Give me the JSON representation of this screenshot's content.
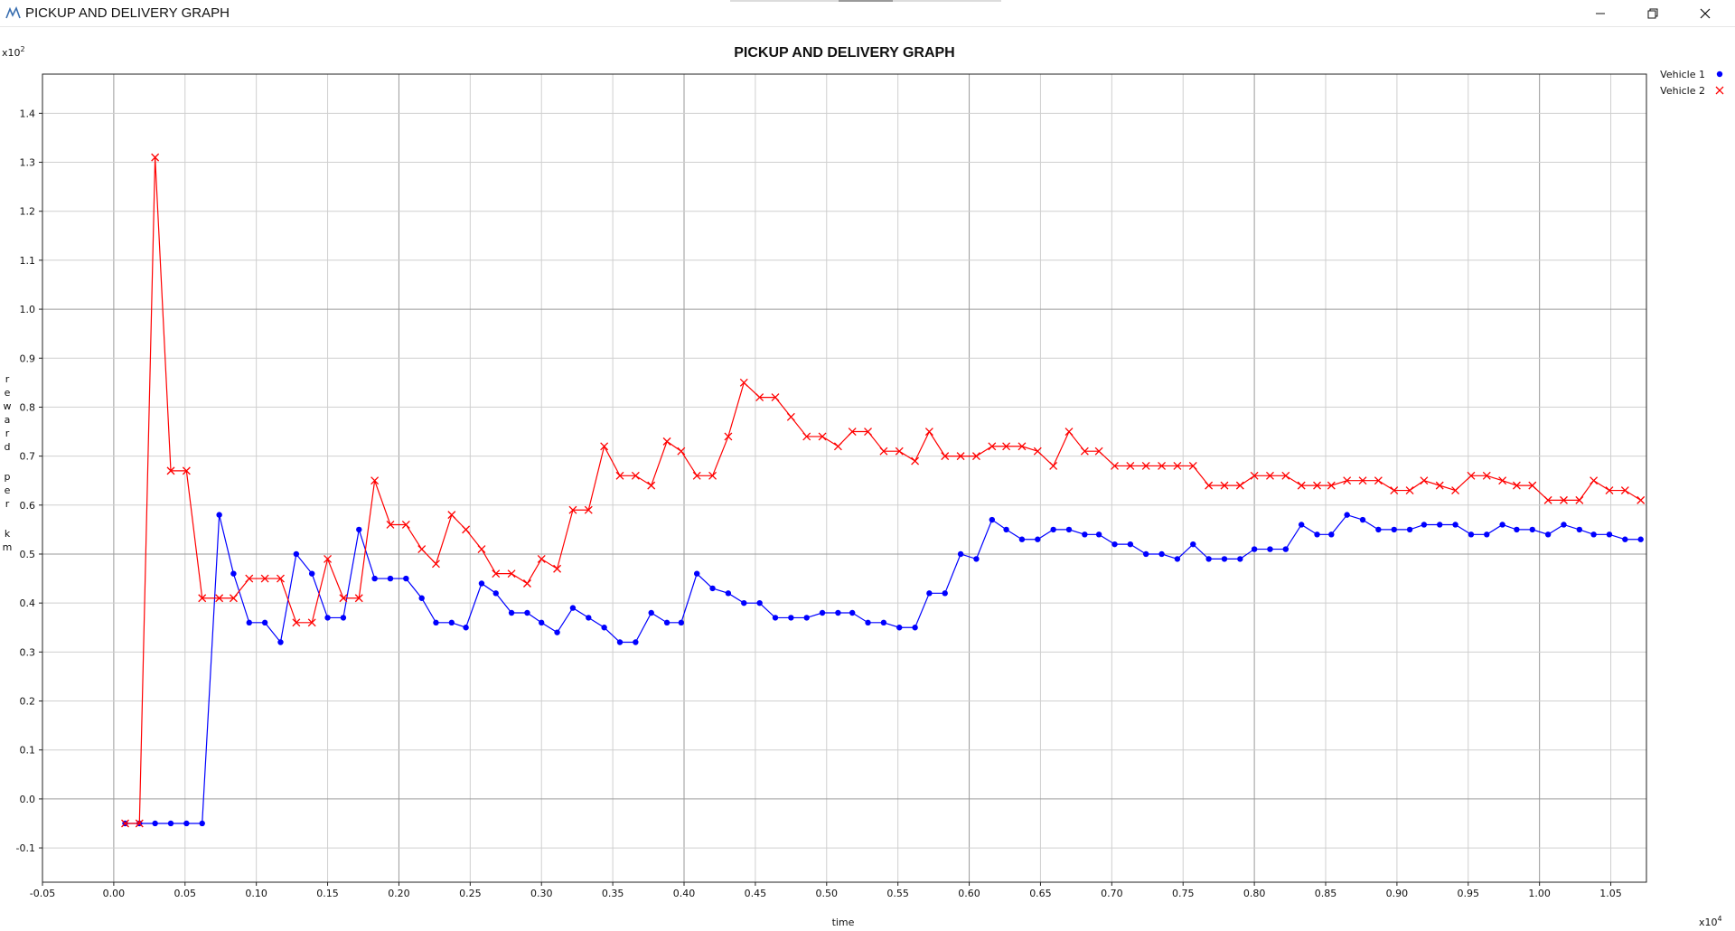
{
  "window": {
    "title": "PICKUP AND DELIVERY GRAPH",
    "icons": [
      "app-chart-icon",
      "minimize-icon",
      "restore-icon",
      "close-icon"
    ]
  },
  "chart_data": {
    "type": "line",
    "title": "PICKUP AND DELIVERY GRAPH",
    "xlabel": "time",
    "ylabel": "reward per km",
    "x_exponent": "x10^4",
    "y_exponent": "x10^2",
    "x_exponent_base": "x10",
    "x_exponent_power": "4",
    "y_exponent_base": "x10",
    "y_exponent_power": "2",
    "xlim": [
      -0.05,
      1.075
    ],
    "ylim": [
      -0.17,
      1.48
    ],
    "xticks": [
      "-0.05",
      "0.00",
      "0.05",
      "0.10",
      "0.15",
      "0.20",
      "0.25",
      "0.30",
      "0.35",
      "0.40",
      "0.45",
      "0.50",
      "0.55",
      "0.60",
      "0.65",
      "0.70",
      "0.75",
      "0.80",
      "0.85",
      "0.90",
      "0.95",
      "1.00",
      "1.05"
    ],
    "yticks": [
      "-0.1",
      "0.0",
      "0.1",
      "0.2",
      "0.3",
      "0.4",
      "0.5",
      "0.6",
      "0.7",
      "0.8",
      "0.9",
      "1.0",
      "1.1",
      "1.2",
      "1.3",
      "1.4"
    ],
    "grid": true,
    "legend_position": "top-right",
    "series": [
      {
        "name": "Vehicle 1",
        "color": "#0000ff",
        "marker": "dot",
        "points": [
          [
            0.008,
            -0.05
          ],
          [
            0.018,
            -0.05
          ],
          [
            0.029,
            -0.05
          ],
          [
            0.04,
            -0.05
          ],
          [
            0.051,
            -0.05
          ],
          [
            0.062,
            -0.05
          ],
          [
            0.074,
            0.58
          ],
          [
            0.084,
            0.46
          ],
          [
            0.095,
            0.36
          ],
          [
            0.106,
            0.36
          ],
          [
            0.117,
            0.32
          ],
          [
            0.128,
            0.5
          ],
          [
            0.139,
            0.46
          ],
          [
            0.15,
            0.37
          ],
          [
            0.161,
            0.37
          ],
          [
            0.172,
            0.55
          ],
          [
            0.183,
            0.45
          ],
          [
            0.194,
            0.45
          ],
          [
            0.205,
            0.45
          ],
          [
            0.216,
            0.41
          ],
          [
            0.226,
            0.36
          ],
          [
            0.237,
            0.36
          ],
          [
            0.247,
            0.35
          ],
          [
            0.258,
            0.44
          ],
          [
            0.268,
            0.42
          ],
          [
            0.279,
            0.38
          ],
          [
            0.29,
            0.38
          ],
          [
            0.3,
            0.36
          ],
          [
            0.311,
            0.34
          ],
          [
            0.322,
            0.39
          ],
          [
            0.333,
            0.37
          ],
          [
            0.344,
            0.35
          ],
          [
            0.355,
            0.32
          ],
          [
            0.366,
            0.32
          ],
          [
            0.377,
            0.38
          ],
          [
            0.388,
            0.36
          ],
          [
            0.398,
            0.36
          ],
          [
            0.409,
            0.46
          ],
          [
            0.42,
            0.43
          ],
          [
            0.431,
            0.42
          ],
          [
            0.442,
            0.4
          ],
          [
            0.453,
            0.4
          ],
          [
            0.464,
            0.37
          ],
          [
            0.475,
            0.37
          ],
          [
            0.486,
            0.37
          ],
          [
            0.497,
            0.38
          ],
          [
            0.508,
            0.38
          ],
          [
            0.518,
            0.38
          ],
          [
            0.529,
            0.36
          ],
          [
            0.54,
            0.36
          ],
          [
            0.551,
            0.35
          ],
          [
            0.562,
            0.35
          ],
          [
            0.572,
            0.42
          ],
          [
            0.583,
            0.42
          ],
          [
            0.594,
            0.5
          ],
          [
            0.605,
            0.49
          ],
          [
            0.616,
            0.57
          ],
          [
            0.626,
            0.55
          ],
          [
            0.637,
            0.53
          ],
          [
            0.648,
            0.53
          ],
          [
            0.659,
            0.55
          ],
          [
            0.67,
            0.55
          ],
          [
            0.681,
            0.54
          ],
          [
            0.691,
            0.54
          ],
          [
            0.702,
            0.52
          ],
          [
            0.713,
            0.52
          ],
          [
            0.724,
            0.5
          ],
          [
            0.735,
            0.5
          ],
          [
            0.746,
            0.49
          ],
          [
            0.757,
            0.52
          ],
          [
            0.768,
            0.49
          ],
          [
            0.779,
            0.49
          ],
          [
            0.79,
            0.49
          ],
          [
            0.8,
            0.51
          ],
          [
            0.811,
            0.51
          ],
          [
            0.822,
            0.51
          ],
          [
            0.833,
            0.56
          ],
          [
            0.844,
            0.54
          ],
          [
            0.854,
            0.54
          ],
          [
            0.865,
            0.58
          ],
          [
            0.876,
            0.57
          ],
          [
            0.887,
            0.55
          ],
          [
            0.898,
            0.55
          ],
          [
            0.909,
            0.55
          ],
          [
            0.919,
            0.56
          ],
          [
            0.93,
            0.56
          ],
          [
            0.941,
            0.56
          ],
          [
            0.952,
            0.54
          ],
          [
            0.963,
            0.54
          ],
          [
            0.974,
            0.56
          ],
          [
            0.984,
            0.55
          ],
          [
            0.995,
            0.55
          ],
          [
            1.006,
            0.54
          ],
          [
            1.017,
            0.56
          ],
          [
            1.028,
            0.55
          ],
          [
            1.038,
            0.54
          ],
          [
            1.049,
            0.54
          ],
          [
            1.06,
            0.53
          ],
          [
            1.071,
            0.53
          ]
        ]
      },
      {
        "name": "Vehicle 2",
        "color": "#ff0000",
        "marker": "x",
        "points": [
          [
            0.008,
            -0.05
          ],
          [
            0.018,
            -0.05
          ],
          [
            0.029,
            1.31
          ],
          [
            0.04,
            0.67
          ],
          [
            0.051,
            0.67
          ],
          [
            0.062,
            0.41
          ],
          [
            0.074,
            0.41
          ],
          [
            0.084,
            0.41
          ],
          [
            0.095,
            0.45
          ],
          [
            0.106,
            0.45
          ],
          [
            0.117,
            0.45
          ],
          [
            0.128,
            0.36
          ],
          [
            0.139,
            0.36
          ],
          [
            0.15,
            0.49
          ],
          [
            0.161,
            0.41
          ],
          [
            0.172,
            0.41
          ],
          [
            0.183,
            0.65
          ],
          [
            0.194,
            0.56
          ],
          [
            0.205,
            0.56
          ],
          [
            0.216,
            0.51
          ],
          [
            0.226,
            0.48
          ],
          [
            0.237,
            0.58
          ],
          [
            0.247,
            0.55
          ],
          [
            0.258,
            0.51
          ],
          [
            0.268,
            0.46
          ],
          [
            0.279,
            0.46
          ],
          [
            0.29,
            0.44
          ],
          [
            0.3,
            0.49
          ],
          [
            0.311,
            0.47
          ],
          [
            0.322,
            0.59
          ],
          [
            0.333,
            0.59
          ],
          [
            0.344,
            0.72
          ],
          [
            0.355,
            0.66
          ],
          [
            0.366,
            0.66
          ],
          [
            0.377,
            0.64
          ],
          [
            0.388,
            0.73
          ],
          [
            0.398,
            0.71
          ],
          [
            0.409,
            0.66
          ],
          [
            0.42,
            0.66
          ],
          [
            0.431,
            0.74
          ],
          [
            0.442,
            0.85
          ],
          [
            0.453,
            0.82
          ],
          [
            0.464,
            0.82
          ],
          [
            0.475,
            0.78
          ],
          [
            0.486,
            0.74
          ],
          [
            0.497,
            0.74
          ],
          [
            0.508,
            0.72
          ],
          [
            0.518,
            0.75
          ],
          [
            0.529,
            0.75
          ],
          [
            0.54,
            0.71
          ],
          [
            0.551,
            0.71
          ],
          [
            0.562,
            0.69
          ],
          [
            0.572,
            0.75
          ],
          [
            0.583,
            0.7
          ],
          [
            0.594,
            0.7
          ],
          [
            0.605,
            0.7
          ],
          [
            0.616,
            0.72
          ],
          [
            0.626,
            0.72
          ],
          [
            0.637,
            0.72
          ],
          [
            0.648,
            0.71
          ],
          [
            0.659,
            0.68
          ],
          [
            0.67,
            0.75
          ],
          [
            0.681,
            0.71
          ],
          [
            0.691,
            0.71
          ],
          [
            0.702,
            0.68
          ],
          [
            0.713,
            0.68
          ],
          [
            0.724,
            0.68
          ],
          [
            0.735,
            0.68
          ],
          [
            0.746,
            0.68
          ],
          [
            0.757,
            0.68
          ],
          [
            0.768,
            0.64
          ],
          [
            0.779,
            0.64
          ],
          [
            0.79,
            0.64
          ],
          [
            0.8,
            0.66
          ],
          [
            0.811,
            0.66
          ],
          [
            0.822,
            0.66
          ],
          [
            0.833,
            0.64
          ],
          [
            0.844,
            0.64
          ],
          [
            0.854,
            0.64
          ],
          [
            0.865,
            0.65
          ],
          [
            0.876,
            0.65
          ],
          [
            0.887,
            0.65
          ],
          [
            0.898,
            0.63
          ],
          [
            0.909,
            0.63
          ],
          [
            0.919,
            0.65
          ],
          [
            0.93,
            0.64
          ],
          [
            0.941,
            0.63
          ],
          [
            0.952,
            0.66
          ],
          [
            0.963,
            0.66
          ],
          [
            0.974,
            0.65
          ],
          [
            0.984,
            0.64
          ],
          [
            0.995,
            0.64
          ],
          [
            1.006,
            0.61
          ],
          [
            1.017,
            0.61
          ],
          [
            1.028,
            0.61
          ],
          [
            1.038,
            0.65
          ],
          [
            1.049,
            0.63
          ],
          [
            1.06,
            0.63
          ],
          [
            1.071,
            0.61
          ]
        ]
      }
    ]
  }
}
